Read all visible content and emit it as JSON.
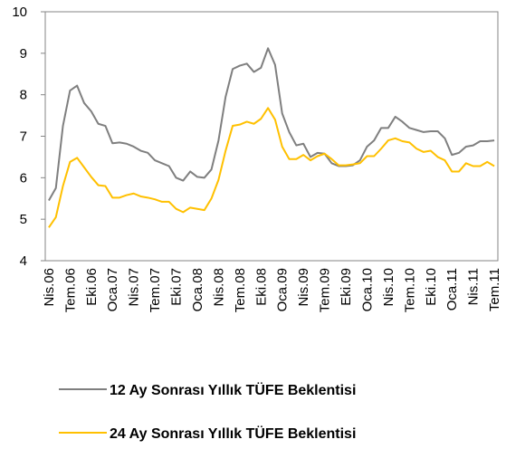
{
  "chart_data": {
    "type": "line",
    "categories": [
      "Nis.06",
      null,
      null,
      "Tem.06",
      null,
      null,
      "Eki.06",
      null,
      null,
      "Oca.07",
      null,
      null,
      "Nis.07",
      null,
      null,
      "Tem.07",
      null,
      null,
      "Eki.07",
      null,
      null,
      "Oca.08",
      null,
      null,
      "Nis.08",
      null,
      null,
      "Tem.08",
      null,
      null,
      "Eki.08",
      null,
      null,
      "Oca.09",
      null,
      null,
      "Nis.09",
      null,
      null,
      "Tem.09",
      null,
      null,
      "Eki.09",
      null,
      null,
      "Oca.10",
      null,
      null,
      "Nis.10",
      null,
      null,
      "Tem.10",
      null,
      null,
      "Eki.10",
      null,
      null,
      "Oca.11",
      null,
      null,
      "Nis.11",
      null,
      null,
      "Tem.11"
    ],
    "series": [
      {
        "name": "12 Ay Sonrası Yıllık TÜFE Beklentisi",
        "color": "#7f7f7f",
        "values": [
          5.45,
          5.75,
          7.25,
          8.1,
          8.22,
          7.8,
          7.6,
          7.3,
          7.25,
          6.83,
          6.85,
          6.82,
          6.75,
          6.65,
          6.6,
          6.42,
          6.35,
          6.28,
          6.0,
          5.93,
          6.15,
          6.02,
          6.0,
          6.2,
          6.9,
          7.95,
          8.62,
          8.7,
          8.75,
          8.55,
          8.65,
          9.12,
          8.72,
          7.55,
          7.1,
          6.78,
          6.82,
          6.5,
          6.6,
          6.58,
          6.35,
          6.28,
          6.28,
          6.3,
          6.42,
          6.75,
          6.9,
          7.2,
          7.2,
          7.47,
          7.35,
          7.2,
          7.15,
          7.1,
          7.12,
          7.12,
          6.95,
          6.55,
          6.6,
          6.75,
          6.78,
          6.88,
          6.88,
          6.9
        ]
      },
      {
        "name": "24 Ay Sonrası Yıllık TÜFE Beklentisi",
        "color": "#ffc000",
        "values": [
          4.8,
          5.05,
          5.8,
          6.38,
          6.48,
          6.25,
          6.02,
          5.82,
          5.8,
          5.52,
          5.52,
          5.58,
          5.62,
          5.55,
          5.52,
          5.48,
          5.42,
          5.42,
          5.25,
          5.17,
          5.28,
          5.25,
          5.22,
          5.5,
          5.95,
          6.65,
          7.25,
          7.28,
          7.35,
          7.3,
          7.42,
          7.68,
          7.4,
          6.75,
          6.45,
          6.45,
          6.55,
          6.42,
          6.52,
          6.58,
          6.45,
          6.3,
          6.3,
          6.32,
          6.35,
          6.52,
          6.52,
          6.7,
          6.9,
          6.95,
          6.88,
          6.85,
          6.7,
          6.62,
          6.65,
          6.5,
          6.42,
          6.15,
          6.15,
          6.35,
          6.28,
          6.28,
          6.38,
          6.28
        ]
      }
    ],
    "ylim": [
      4,
      10
    ],
    "yticks": [
      4,
      5,
      6,
      7,
      8,
      9,
      10
    ],
    "grid": false
  }
}
